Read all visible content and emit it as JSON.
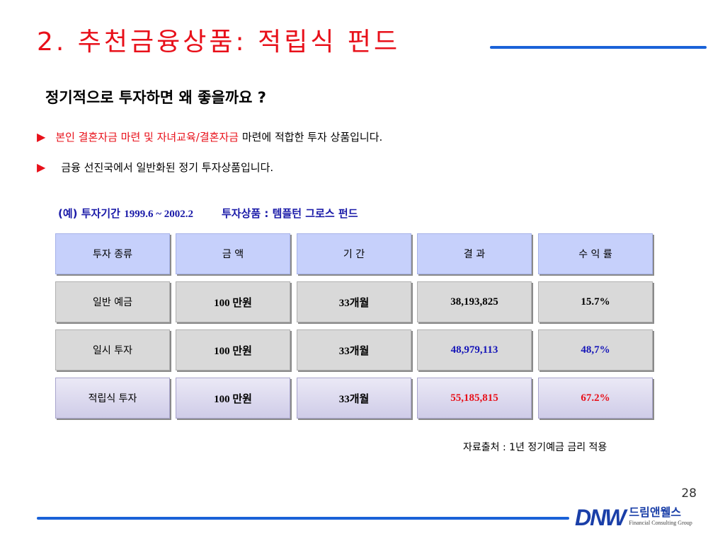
{
  "slide": {
    "title": "2. 추천금융상품: 적립식 펀드",
    "subtitle": "정기적으로 투자하면 왜 좋을까요 ?",
    "bullet1": {
      "marker": "▶",
      "red_text": "본인 결혼자금 마련 및 자녀교육/결혼자금",
      "text": " 마련에 적합한 투자 상품입니다."
    },
    "bullet2": {
      "marker": "▶",
      "text": "금융 선진국에서 일반화된 정기 투자상품입니다."
    },
    "example": {
      "prefix": "(예)",
      "period_label": "투자기간",
      "period_value": "1999.6 ~ 2002.2",
      "product": "투자상품 : 템플턴 그로스 펀드"
    },
    "table": {
      "headers": [
        "투자 종류",
        "금  액",
        "기  간",
        "결  과",
        "수 익 률"
      ],
      "rows": [
        [
          "일반 예금",
          "100 만원",
          "33개월",
          "38,193,825",
          "15.7%"
        ],
        [
          "일시 투자",
          "100 만원",
          "33개월",
          "48,979,113",
          "48,7%"
        ],
        [
          "적립식 투자",
          "100 만원",
          "33개월",
          "55,185,815",
          "67.2%"
        ]
      ]
    },
    "source": "자료출처 : 1년 정기예금 금리 적용",
    "page_number": "28",
    "logo": {
      "mark": "DNW",
      "korean": "드림앤웰스",
      "english": "Financial Consulting Group"
    }
  },
  "colors": {
    "title_red": "#e8101a",
    "rule_blue": "#1a62d8",
    "header_fill": "#c6d0fb",
    "row_fill": "#d9d9d9",
    "highlight_fill": "#d8d5ee",
    "value_blue": "#1515b8",
    "value_red": "#e8101a"
  }
}
